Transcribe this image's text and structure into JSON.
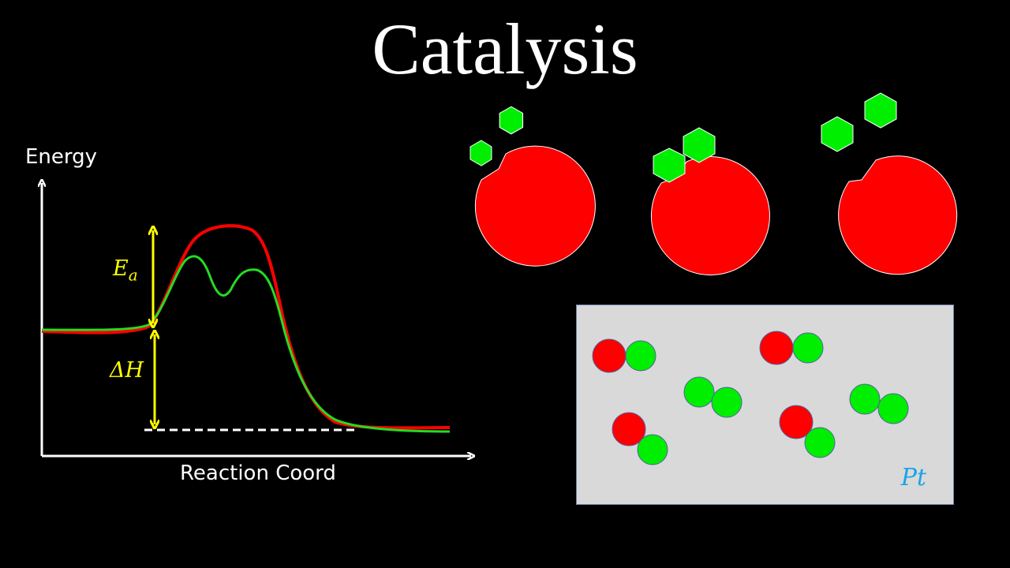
{
  "title": "Catalysis",
  "energy_diagram": {
    "y_axis_label": "Energy",
    "x_axis_label": "Reaction Coord",
    "activation_energy_label": "E",
    "activation_energy_subscript": "a",
    "enthalpy_label": "ΔH",
    "colors": {
      "uncatalyzed": "#ff0000",
      "catalyzed": "#22dd22",
      "arrows": "#ffff00",
      "axes": "#ffffff"
    }
  },
  "enzyme_panel": {
    "enzyme_color": "#ff0000",
    "substrate_color": "#00ee00",
    "stages": [
      "substrates-approaching",
      "substrates-bound",
      "products-released"
    ]
  },
  "surface_panel": {
    "label": "Pt",
    "label_color": "#1aa3e8",
    "background_color": "#d9d9d9"
  }
}
